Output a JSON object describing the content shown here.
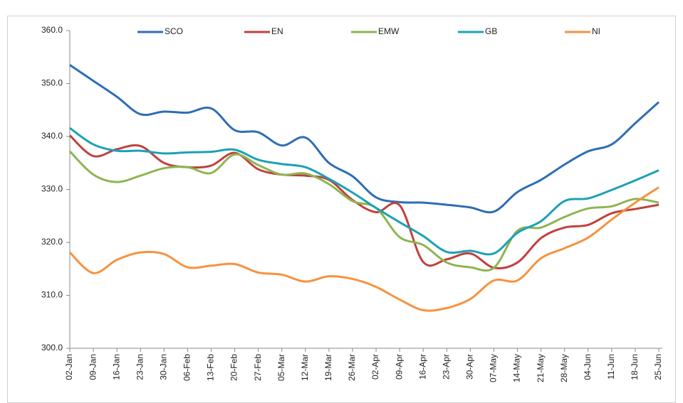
{
  "chart_data": {
    "type": "line",
    "categories": [
      "02-Jan",
      "09-Jan",
      "16-Jan",
      "23-Jan",
      "30-Jan",
      "06-Feb",
      "13-Feb",
      "20-Feb",
      "27-Feb",
      "05-Mar",
      "12-Mar",
      "19-Mar",
      "26-Mar",
      "02-Apr",
      "09-Apr",
      "16-Apr",
      "23-Apr",
      "30-Apr",
      "07-May",
      "14-May",
      "21-May",
      "28-May",
      "04-Jun",
      "11-Jun",
      "18-Jun",
      "25-Jun"
    ],
    "series": [
      {
        "name": "SCO",
        "color": "#2e6db4",
        "values": [
          353.5,
          350.5,
          347.5,
          344.2,
          344.7,
          344.5,
          345.3,
          341.2,
          340.8,
          338.3,
          339.8,
          335,
          332.5,
          328.5,
          327.6,
          327.5,
          327.1,
          326.6,
          325.8,
          329.5,
          331.8,
          334.7,
          337.2,
          338.5,
          342.5,
          346.5
        ]
      },
      {
        "name": "EN",
        "color": "#c0413d",
        "values": [
          340.2,
          336.3,
          337.6,
          338.2,
          335,
          334.2,
          334.5,
          336.9,
          333.8,
          332.8,
          332.6,
          331.8,
          328,
          325.7,
          327,
          316.3,
          316.8,
          317.9,
          315.2,
          316.2,
          320.8,
          322.8,
          323.3,
          325.5,
          326.3,
          327.1
        ]
      },
      {
        "name": "EMW",
        "color": "#8db550",
        "values": [
          337.2,
          332.8,
          331.4,
          332.6,
          334,
          334.2,
          333.1,
          336.6,
          334.6,
          332.8,
          333,
          331,
          327.8,
          326.5,
          321,
          319.5,
          316.2,
          315.3,
          315.2,
          322.2,
          322.8,
          324.8,
          326.4,
          326.8,
          328.2,
          327.5
        ]
      },
      {
        "name": "GB",
        "color": "#1ba1b5",
        "values": [
          341.6,
          338.5,
          337.3,
          337.3,
          336.8,
          337,
          337.1,
          337.5,
          335.6,
          334.8,
          334.2,
          332,
          329.4,
          326.5,
          323.8,
          321.2,
          318.2,
          318.4,
          317.9,
          321.8,
          324,
          327.8,
          328.3,
          329.9,
          331.7,
          333.6
        ]
      },
      {
        "name": "NI",
        "color": "#f7923f",
        "values": [
          318.1,
          314.2,
          316.7,
          318.1,
          317.8,
          315.3,
          315.6,
          315.9,
          314.3,
          313.9,
          312.6,
          313.6,
          313.1,
          311.6,
          309.2,
          307.2,
          307.6,
          309.3,
          312.8,
          312.8,
          317,
          318.9,
          320.9,
          324.3,
          327.5,
          330.4
        ]
      }
    ],
    "ylim": [
      300,
      360
    ],
    "yticks": [
      {
        "value": 300,
        "label": "300.0"
      },
      {
        "value": 310,
        "label": "310.0"
      },
      {
        "value": 320,
        "label": "320.0"
      },
      {
        "value": 330,
        "label": "330.0"
      },
      {
        "value": 340,
        "label": "340.0"
      },
      {
        "value": 350,
        "label": "350.0"
      },
      {
        "value": 360,
        "label": "360.0"
      }
    ],
    "legend": "top",
    "grid": false
  }
}
